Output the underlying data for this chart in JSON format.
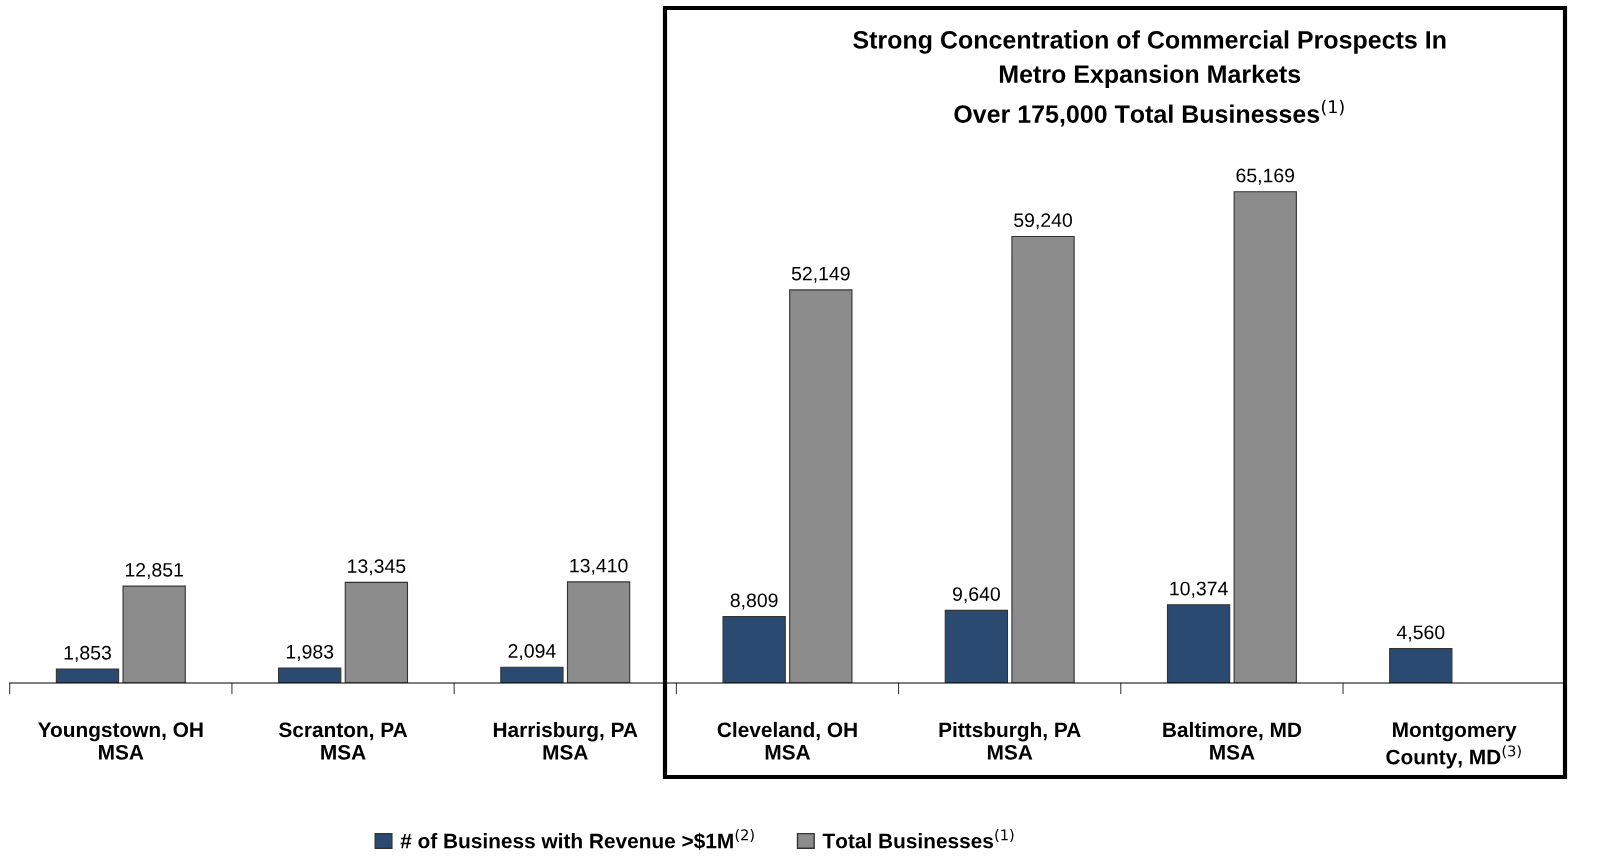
{
  "chart_data": {
    "type": "bar",
    "title": "Strong Concentration of Commercial Prospects In\nMetro Expansion Markets\nOver 175,000 Total Businesses$^{(1)}$",
    "categories": [
      "Youngstown, OH\nMSA",
      "Scranton, PA\nMSA",
      "Harrisburg, PA\nMSA",
      "Cleveland, OH\nMSA",
      "Pittsburgh, PA\nMSA",
      "Baltimore, MD\nMSA",
      "Montgomery\nCounty, MD$^{(3)}$"
    ],
    "series": [
      {
        "name": "# of Business with Revenue >$1M$^{(2)}$",
        "color": "#2b4a72",
        "values": [
          1853,
          1983,
          2094,
          8809,
          9640,
          10374,
          4560
        ],
        "value_labels": [
          "1,853",
          "1,983",
          "2,094",
          "8,809",
          "9,640",
          "10,374",
          "4,560"
        ]
      },
      {
        "name": "Total Businesses$^{(1)}$",
        "color": "#8c8c8c",
        "values": [
          12851,
          13345,
          13410,
          52149,
          59240,
          65169,
          null
        ],
        "value_labels": [
          "12,851",
          "13,345",
          "13,410",
          "52,149",
          "59,240",
          "65,169",
          null
        ]
      }
    ],
    "grid": false,
    "legend": "bottom"
  }
}
